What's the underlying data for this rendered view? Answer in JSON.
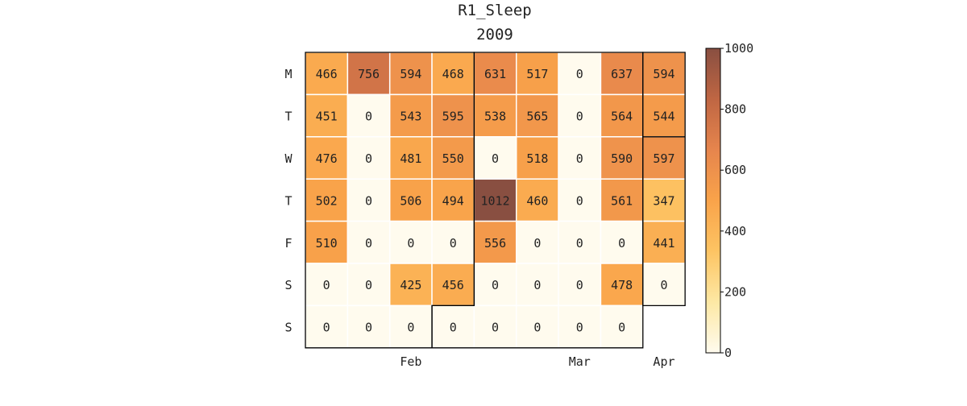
{
  "chart_data": {
    "type": "heatmap",
    "title": "R1_Sleep",
    "subtitle": "2009",
    "row_labels": [
      "M",
      "T",
      "W",
      "T",
      "F",
      "S",
      "S"
    ],
    "column_count": 9,
    "month_labels": [
      {
        "text": "Feb",
        "column_center": 2.0
      },
      {
        "text": "Mar",
        "column_center": 6.0
      },
      {
        "text": "Apr",
        "column_center": 8.5
      }
    ],
    "values": [
      [
        466,
        756,
        594,
        468,
        631,
        517,
        0,
        637,
        594
      ],
      [
        451,
        0,
        543,
        595,
        538,
        565,
        0,
        564,
        544
      ],
      [
        476,
        0,
        481,
        550,
        0,
        518,
        0,
        590,
        597
      ],
      [
        502,
        0,
        506,
        494,
        1012,
        460,
        0,
        561,
        347
      ],
      [
        510,
        0,
        0,
        0,
        556,
        0,
        0,
        0,
        441
      ],
      [
        0,
        0,
        425,
        456,
        0,
        0,
        0,
        478,
        0
      ],
      [
        0,
        0,
        0,
        0,
        0,
        0,
        0,
        0,
        null
      ]
    ],
    "colorbar": {
      "min": 0,
      "max": 1000,
      "ticks": [
        "0",
        "200",
        "400",
        "600",
        "800",
        "1000"
      ],
      "colors": [
        "#fffbee",
        "#fde8a4",
        "#fdc463",
        "#f9a34a",
        "#e6854d",
        "#bf6643",
        "#894f41"
      ]
    },
    "month_boundaries": [
      "2009-02",
      "2009-03",
      "2009-04"
    ],
    "grid": false
  }
}
